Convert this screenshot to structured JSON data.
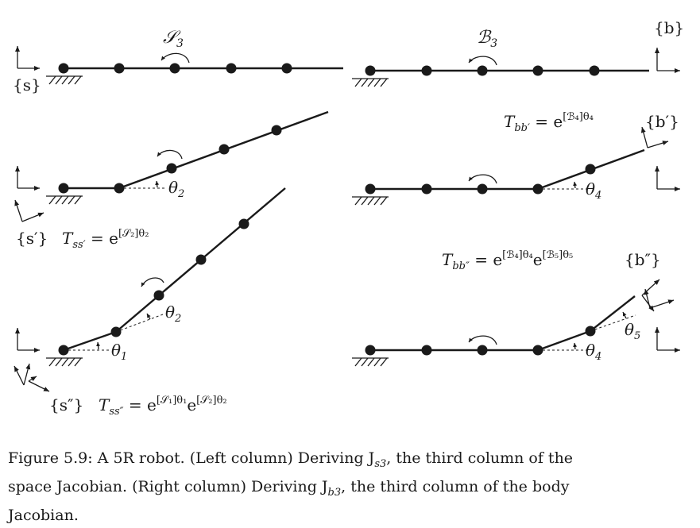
{
  "labels": {
    "frame_s": "{s}",
    "frame_b": "{b}",
    "frame_s_prime": "{s′}",
    "frame_s_double": "{s″}",
    "frame_b_prime": "{b′}",
    "frame_b_double": "{b″}",
    "screw_S3": "𝒮",
    "screw_S3_sub": "3",
    "screw_B3": "ℬ",
    "screw_B3_sub": "3",
    "theta_1": "θ",
    "theta_1_sub": "1",
    "theta_2": "θ",
    "theta_2_sub": "2",
    "theta_4": "θ",
    "theta_4_sub": "4",
    "theta_5": "θ",
    "theta_5_sub": "5",
    "T_ss_prime": "T",
    "T_ss_prime_sub": "ss′",
    "T_ss_prime_eq": " = e",
    "T_ss_prime_exp": "[𝒮₂]θ₂",
    "T_ss_double": "T",
    "T_ss_double_sub": "ss″",
    "T_ss_double_eq": " = e",
    "T_ss_double_exp1": "[𝒮₁]θ₁",
    "T_ss_double_mid": "e",
    "T_ss_double_exp2": "[𝒮₂]θ₂",
    "T_bb_prime": "T",
    "T_bb_prime_sub": "bb′",
    "T_bb_prime_eq": " = e",
    "T_bb_prime_exp": "[ℬ₄]θ₄",
    "T_bb_double": "T",
    "T_bb_double_sub": "bb″",
    "T_bb_double_eq": " = e",
    "T_bb_double_exp1": "[ℬ₄]θ₄",
    "T_bb_double_mid": "e",
    "T_bb_double_exp2": "[ℬ₅]θ₅"
  },
  "caption": {
    "line1": "Figure 5.9: A 5R robot. (Left column) Deriving J",
    "line1_sub": "s3",
    "line1_rest": ", the third column of the",
    "line2": "space Jacobian. (Right column) Deriving J",
    "line2_sub": "b3",
    "line2_rest": ", the third column of the body",
    "line3": "Jacobian."
  }
}
